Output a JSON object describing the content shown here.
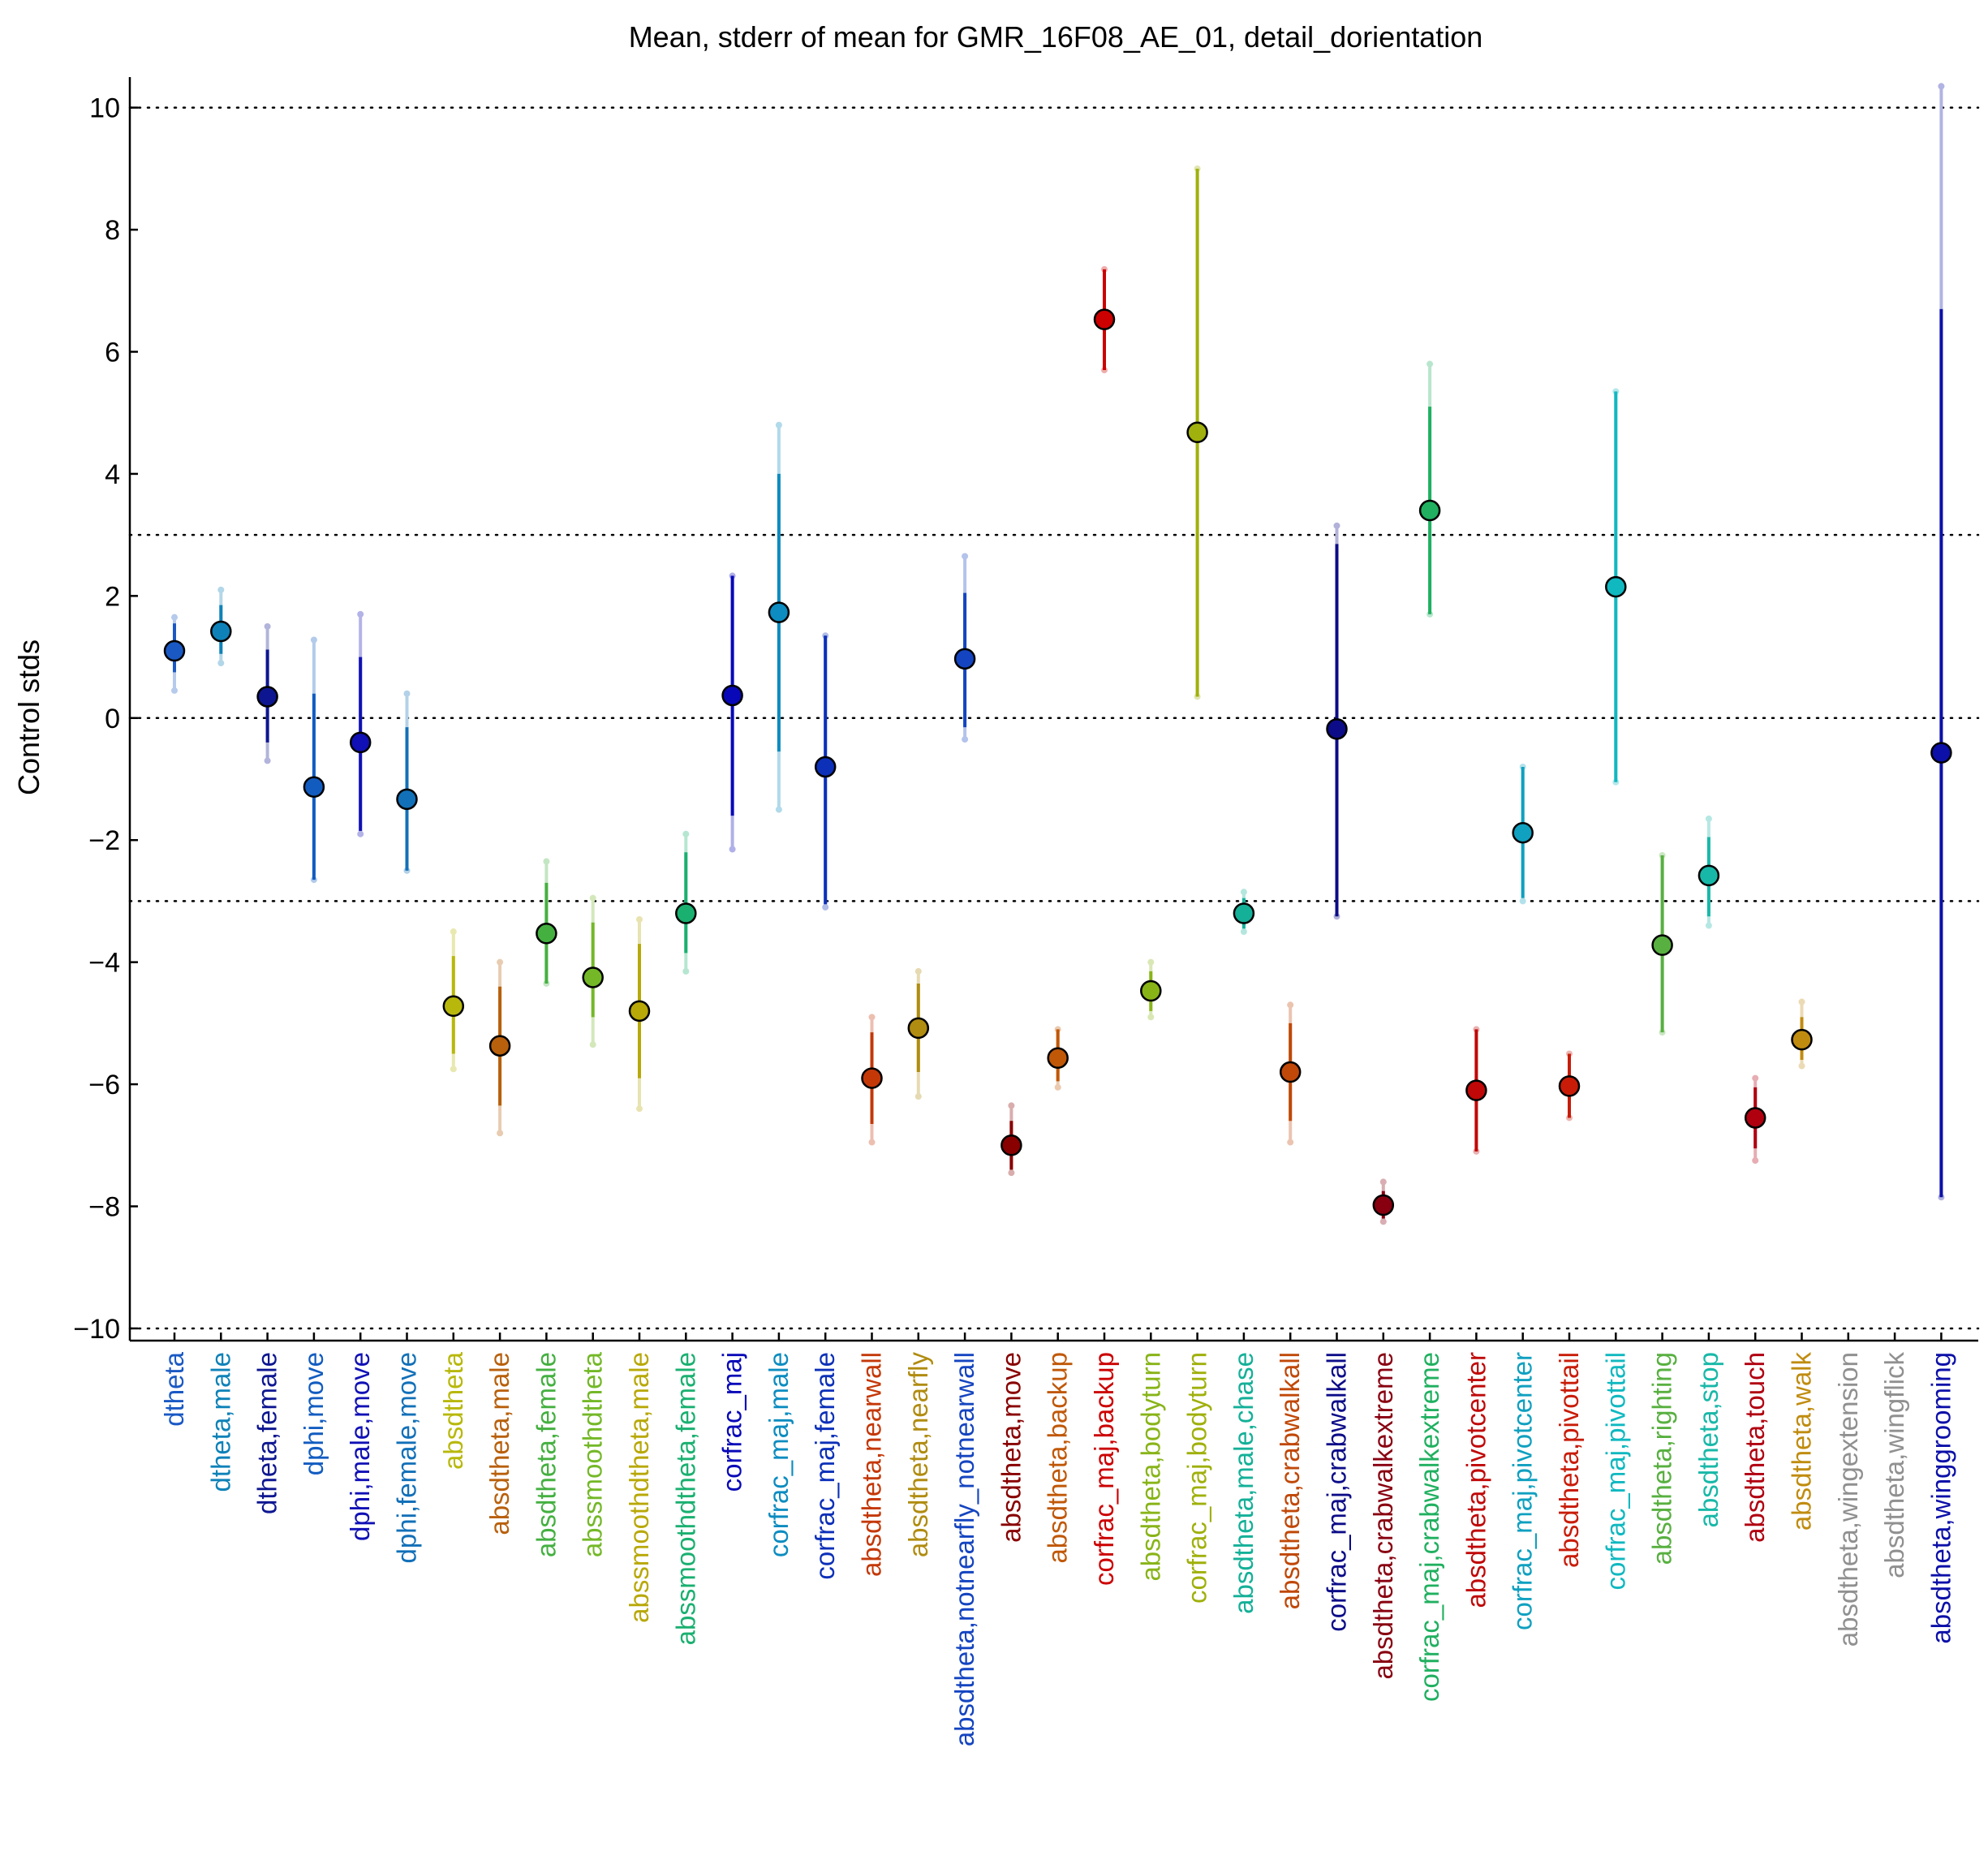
{
  "chart_data": {
    "type": "scatter",
    "title": "Mean, stderr of mean for GMR_16F08_AE_01, detail_dorientation",
    "ylabel": "Control stds",
    "xlabel": "",
    "ylim": [
      -10.2,
      10.5
    ],
    "yticks": [
      -10,
      -8,
      -6,
      -4,
      -2,
      0,
      2,
      4,
      6,
      8,
      10
    ],
    "ytick_labels": [
      "−10",
      "−8",
      "−6",
      "−4",
      "−2",
      "0",
      "2",
      "4",
      "6",
      "8",
      "10"
    ],
    "reference_lines": [
      -10,
      -3,
      0,
      3,
      10
    ],
    "grid": false,
    "legend": "none",
    "points": [
      {
        "label": "dtheta",
        "color": "#1a59c4",
        "mean": 1.1,
        "se_lo": 0.75,
        "se_hi": 1.55,
        "range_lo": 0.45,
        "range_hi": 1.65
      },
      {
        "label": "dtheta,male",
        "color": "#0e82b8",
        "mean": 1.42,
        "se_lo": 1.05,
        "se_hi": 1.85,
        "range_lo": 0.9,
        "range_hi": 2.1
      },
      {
        "label": "dtheta,female",
        "color": "#0d1690",
        "mean": 0.35,
        "se_lo": -0.4,
        "se_hi": 1.12,
        "range_lo": -0.7,
        "range_hi": 1.5
      },
      {
        "label": "dphi,move",
        "color": "#125cc0",
        "mean": -1.13,
        "se_lo": -2.65,
        "se_hi": 0.4,
        "range_lo": -2.65,
        "range_hi": 1.28
      },
      {
        "label": "dphi,male,move",
        "color": "#1010b6",
        "mean": -0.4,
        "se_lo": -1.85,
        "se_hi": 1.0,
        "range_lo": -1.9,
        "range_hi": 1.7
      },
      {
        "label": "dphi,female,move",
        "color": "#1270b8",
        "mean": -1.33,
        "se_lo": -2.5,
        "se_hi": -0.15,
        "range_lo": -2.5,
        "range_hi": 0.4
      },
      {
        "label": "absdtheta",
        "color": "#b8b80c",
        "mean": -4.72,
        "se_lo": -5.5,
        "se_hi": -3.9,
        "range_lo": -5.75,
        "range_hi": -3.5
      },
      {
        "label": "absdtheta,male",
        "color": "#b8600c",
        "mean": -5.37,
        "se_lo": -6.35,
        "se_hi": -4.4,
        "range_lo": -6.8,
        "range_hi": -4.0
      },
      {
        "label": "absdtheta,female",
        "color": "#44b040",
        "mean": -3.53,
        "se_lo": -4.35,
        "se_hi": -2.7,
        "range_lo": -4.35,
        "range_hi": -2.35
      },
      {
        "label": "abssmoothdtheta",
        "color": "#74b828",
        "mean": -4.25,
        "se_lo": -4.9,
        "se_hi": -3.35,
        "range_lo": -5.35,
        "range_hi": -2.95
      },
      {
        "label": "abssmoothdtheta,male",
        "color": "#b8a808",
        "mean": -4.8,
        "se_lo": -5.9,
        "se_hi": -3.7,
        "range_lo": -6.4,
        "range_hi": -3.3
      },
      {
        "label": "abssmoothdtheta,female",
        "color": "#1ab070",
        "mean": -3.2,
        "se_lo": -3.85,
        "se_hi": -2.2,
        "range_lo": -4.15,
        "range_hi": -1.9
      },
      {
        "label": "corfrac_maj",
        "color": "#0808b8",
        "mean": 0.37,
        "se_lo": -1.6,
        "se_hi": 2.33,
        "range_lo": -2.15,
        "range_hi": 2.33
      },
      {
        "label": "corfrac_maj,male",
        "color": "#0c8cc0",
        "mean": 1.73,
        "se_lo": -0.55,
        "se_hi": 4.0,
        "range_lo": -1.5,
        "range_hi": 4.8
      },
      {
        "label": "corfrac_maj,female",
        "color": "#0c30b8",
        "mean": -0.8,
        "se_lo": -3.05,
        "se_hi": 1.35,
        "range_lo": -3.1,
        "range_hi": 1.35
      },
      {
        "label": "absdtheta,nearwall",
        "color": "#c43808",
        "mean": -5.9,
        "se_lo": -6.65,
        "se_hi": -5.15,
        "range_lo": -6.95,
        "range_hi": -4.9
      },
      {
        "label": "absdtheta,nearfly",
        "color": "#b08c10",
        "mean": -5.08,
        "se_lo": -5.8,
        "se_hi": -4.35,
        "range_lo": -6.2,
        "range_hi": -4.15
      },
      {
        "label": "absdtheta,notnearfly_notnearwall",
        "color": "#1444c0",
        "mean": 0.97,
        "se_lo": -0.15,
        "se_hi": 2.05,
        "range_lo": -0.35,
        "range_hi": 2.65
      },
      {
        "label": "absdtheta,move",
        "color": "#880000",
        "mean": -7.0,
        "se_lo": -7.4,
        "se_hi": -6.6,
        "range_lo": -7.45,
        "range_hi": -6.35
      },
      {
        "label": "absdtheta,backup",
        "color": "#c05808",
        "mean": -5.57,
        "se_lo": -5.95,
        "se_hi": -5.1,
        "range_lo": -6.05,
        "range_hi": -5.1
      },
      {
        "label": "corfrac_maj,backup",
        "color": "#cc0000",
        "mean": 6.53,
        "se_lo": 5.7,
        "se_hi": 7.35,
        "range_lo": 5.7,
        "range_hi": 7.35
      },
      {
        "label": "absdtheta,bodyturn",
        "color": "#88b418",
        "mean": -4.47,
        "se_lo": -4.8,
        "se_hi": -4.15,
        "range_lo": -4.9,
        "range_hi": -4.0
      },
      {
        "label": "corfrac_maj,bodyturn",
        "color": "#a0b00c",
        "mean": 4.68,
        "se_lo": 0.35,
        "se_hi": 9.0,
        "range_lo": 0.35,
        "range_hi": 9.0
      },
      {
        "label": "absdtheta,male,chase",
        "color": "#14b098",
        "mean": -3.2,
        "se_lo": -3.45,
        "se_hi": -2.95,
        "range_lo": -3.5,
        "range_hi": -2.85
      },
      {
        "label": "absdtheta,crabwalkall",
        "color": "#c04808",
        "mean": -5.8,
        "se_lo": -6.6,
        "se_hi": -5.0,
        "range_lo": -6.95,
        "range_hi": -4.7
      },
      {
        "label": "corfrac_maj,crabwalkall",
        "color": "#0c0c88",
        "mean": -0.18,
        "se_lo": -3.25,
        "se_hi": 2.85,
        "range_lo": -3.25,
        "range_hi": 3.15
      },
      {
        "label": "absdtheta,crabwalkextreme",
        "color": "#880010",
        "mean": -7.98,
        "se_lo": -8.2,
        "se_hi": -7.75,
        "range_lo": -8.25,
        "range_hi": -7.6
      },
      {
        "label": "corfrac_maj,crabwalkextreme",
        "color": "#20b060",
        "mean": 3.4,
        "se_lo": 1.7,
        "se_hi": 5.1,
        "range_lo": 1.7,
        "range_hi": 5.8
      },
      {
        "label": "absdtheta,pivotcenter",
        "color": "#c00808",
        "mean": -6.1,
        "se_lo": -7.1,
        "se_hi": -5.1,
        "range_lo": -7.1,
        "range_hi": -5.1
      },
      {
        "label": "corfrac_maj,pivotcenter",
        "color": "#10a0c0",
        "mean": -1.88,
        "se_lo": -2.95,
        "se_hi": -0.8,
        "range_lo": -3.0,
        "range_hi": -0.8
      },
      {
        "label": "absdtheta,pivottail",
        "color": "#c81c08",
        "mean": -6.03,
        "se_lo": -6.55,
        "se_hi": -5.5,
        "range_lo": -6.55,
        "range_hi": -5.5
      },
      {
        "label": "corfrac_maj,pivottail",
        "color": "#10b8c0",
        "mean": 2.15,
        "se_lo": -1.05,
        "se_hi": 5.35,
        "range_lo": -1.05,
        "range_hi": 5.35
      },
      {
        "label": "absdtheta,righting",
        "color": "#58b040",
        "mean": -3.72,
        "se_lo": -5.15,
        "se_hi": -2.25,
        "range_lo": -5.15,
        "range_hi": -2.25
      },
      {
        "label": "absdtheta,stop",
        "color": "#18b8a8",
        "mean": -2.58,
        "se_lo": -3.25,
        "se_hi": -1.95,
        "range_lo": -3.4,
        "range_hi": -1.65
      },
      {
        "label": "absdtheta,touch",
        "color": "#b00010",
        "mean": -6.55,
        "se_lo": -7.05,
        "se_hi": -6.05,
        "range_lo": -7.25,
        "range_hi": -5.9
      },
      {
        "label": "absdtheta,walk",
        "color": "#c08c10",
        "mean": -5.27,
        "se_lo": -5.6,
        "se_hi": -4.9,
        "range_lo": -5.7,
        "range_hi": -4.65
      },
      {
        "label": "absdtheta,wingextension",
        "color": "#909090",
        "mean": null,
        "se_lo": null,
        "se_hi": null,
        "range_lo": null,
        "range_hi": null
      },
      {
        "label": "absdtheta,wingflick",
        "color": "#909090",
        "mean": null,
        "se_lo": null,
        "se_hi": null,
        "range_lo": null,
        "range_hi": null
      },
      {
        "label": "absdtheta,winggrooming",
        "color": "#0c10a8",
        "mean": -0.57,
        "se_lo": -7.85,
        "se_hi": 6.7,
        "range_lo": -7.85,
        "range_hi": 10.35
      }
    ]
  }
}
